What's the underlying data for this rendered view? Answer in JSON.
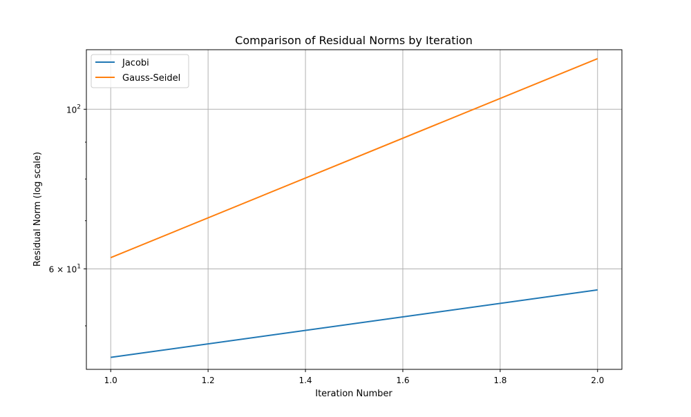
{
  "chart_data": {
    "type": "line",
    "title": "Comparison of Residual Norms by Iteration",
    "xlabel": "Iteration Number",
    "ylabel": "Residual Norm (log scale)",
    "xlim": [
      0.95,
      2.05
    ],
    "ylim": [
      43.5,
      121
    ],
    "yscale": "log",
    "grid": true,
    "legend_position": "upper-left",
    "x_ticks": [
      {
        "value": 1.0,
        "label": "1.0"
      },
      {
        "value": 1.2,
        "label": "1.2"
      },
      {
        "value": 1.4,
        "label": "1.4"
      },
      {
        "value": 1.6,
        "label": "1.6"
      },
      {
        "value": 1.8,
        "label": "1.8"
      },
      {
        "value": 2.0,
        "label": "2.0"
      }
    ],
    "y_major_ticks": [
      {
        "value": 100,
        "base": "10",
        "exp": "2"
      },
      {
        "value": 60,
        "base": "6 × 10",
        "exp": "1"
      }
    ],
    "y_minor_ticks": [
      50,
      70,
      80,
      90
    ],
    "series": [
      {
        "name": "Jacobi",
        "color": "#1f77b4",
        "x": [
          1,
          2
        ],
        "y": [
          45.2,
          56.1
        ]
      },
      {
        "name": "Gauss-Seidel",
        "color": "#ff7f0e",
        "x": [
          1,
          2
        ],
        "y": [
          62.2,
          117.6
        ]
      }
    ]
  }
}
